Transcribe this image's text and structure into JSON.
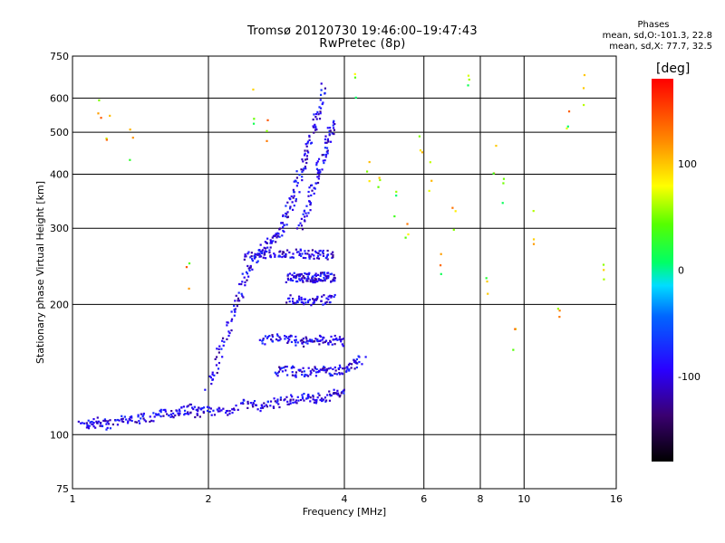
{
  "header": {
    "title": "Tromsø 20120730 19:46:00–19:47:43",
    "subtitle": "RwPretec (8p)"
  },
  "stats": {
    "heading": "Phases",
    "line_o": "mean, sd,O:-101.3, 22.8",
    "line_x": "mean, sd,X: 77.7, 32.5"
  },
  "colorbar": {
    "unit_label": "[deg]",
    "tick_labels": [
      "100",
      "0",
      "-100"
    ],
    "tick_values": [
      100,
      0,
      -100
    ],
    "range": [
      -180,
      180
    ]
  },
  "chart_data": {
    "type": "scatter",
    "title": "Tromsø 20120730 19:46:00–19:47:43",
    "subtitle": "RwPretec (8p)",
    "xlabel": "Frequency [MHz]",
    "ylabel": "Stationary phase Virtual Height [km]",
    "x_scale": "log",
    "y_scale": "log",
    "xlim": [
      1,
      16
    ],
    "ylim": [
      75,
      750
    ],
    "x_ticks": [
      1,
      2,
      4,
      6,
      8,
      10,
      16
    ],
    "x_tick_labels": [
      "1",
      "2",
      "4",
      "6",
      "8",
      "10",
      "16"
    ],
    "y_ticks": [
      75,
      100,
      200,
      300,
      400,
      500,
      600,
      750
    ],
    "y_tick_labels": [
      "75",
      "100",
      "200",
      "300",
      "400",
      "500",
      "600",
      "750"
    ],
    "grid": true,
    "series": [
      {
        "polarity": "O",
        "color_note": "mostly blue/purple (phase around -100 deg)",
        "traces": [
          {
            "trace": "low-frequency echoes",
            "x": [
              1.05,
              1.1,
              1.15,
              1.2,
              1.3,
              1.4,
              1.5,
              1.6,
              1.7,
              1.8,
              1.9,
              2.0,
              2.2,
              2.4,
              2.6,
              2.8,
              3.0,
              3.2,
              3.4,
              3.6,
              3.8,
              4.0
            ],
            "y": [
              105,
              106,
              107,
              105,
              108,
              109,
              110,
              112,
              113,
              115,
              112,
              114,
              113,
              118,
              116,
              118,
              120,
              122,
              121,
              122,
              124,
              126
            ]
          },
          {
            "trace": "rising F trace",
            "x": [
              2.0,
              2.1,
              2.2,
              2.3,
              2.4,
              2.5,
              2.6,
              2.7,
              2.8,
              2.9,
              3.0,
              3.1,
              3.2,
              3.3,
              3.4,
              3.5,
              3.6
            ],
            "y": [
              130,
              150,
              175,
              200,
              225,
              250,
              265,
              275,
              285,
              300,
              330,
              360,
              400,
              450,
              500,
              560,
              640
            ]
          },
          {
            "trace": "upper F trace",
            "x": [
              3.2,
              3.3,
              3.4,
              3.5,
              3.6,
              3.7,
              3.8
            ],
            "y": [
              300,
              330,
              370,
              410,
              450,
              490,
              530
            ]
          },
          {
            "trace": "horizontal layer ~230 km",
            "x": [
              3.0,
              3.1,
              3.2,
              3.3,
              3.4,
              3.5,
              3.6,
              3.7,
              3.8
            ],
            "y": [
              230,
              231,
              229,
              232,
              230,
              231,
              233,
              230,
              232
            ]
          },
          {
            "trace": "horizontal layer ~205 km",
            "x": [
              3.0,
              3.2,
              3.4,
              3.6,
              3.8
            ],
            "y": [
              205,
              206,
              204,
              205,
              206
            ]
          },
          {
            "trace": "horizontal layer ~165 km",
            "x": [
              2.6,
              2.8,
              3.0,
              3.2,
              3.4,
              3.6,
              3.8,
              4.0
            ],
            "y": [
              165,
              167,
              166,
              164,
              165,
              166,
              165,
              164
            ]
          },
          {
            "trace": "horizontal layer ~140 km",
            "x": [
              2.8,
              3.0,
              3.2,
              3.4,
              3.6,
              3.8,
              4.0,
              4.2,
              4.4
            ],
            "y": [
              140,
              141,
              139,
              140,
              141,
              140,
              142,
              145,
              150
            ]
          },
          {
            "trace": "horizontal layer ~260 km",
            "x": [
              2.4,
              2.6,
              2.8,
              3.0,
              3.2,
              3.4,
              3.6,
              3.8
            ],
            "y": [
              260,
              262,
              261,
              262,
              263,
              261,
              262,
              260
            ]
          }
        ]
      },
      {
        "polarity": "X",
        "color_note": "scattered multicolour points (phase around +80 deg)",
        "x": [
          1.15,
          1.2,
          1.35,
          1.8,
          2.5,
          2.7,
          4.2,
          4.5,
          4.8,
          5.2,
          5.5,
          5.9,
          6.2,
          6.5,
          7.0,
          7.5,
          8.3,
          8.6,
          9.0,
          9.5,
          10.5,
          12.0,
          12.5,
          13.5,
          15.0
        ],
        "y": [
          600,
          520,
          470,
          230,
          580,
          500,
          620,
          420,
          380,
          350,
          290,
          450,
          400,
          260,
          330,
          620,
          210,
          440,
          370,
          160,
          300,
          180,
          520,
          640,
          240
        ]
      }
    ]
  }
}
